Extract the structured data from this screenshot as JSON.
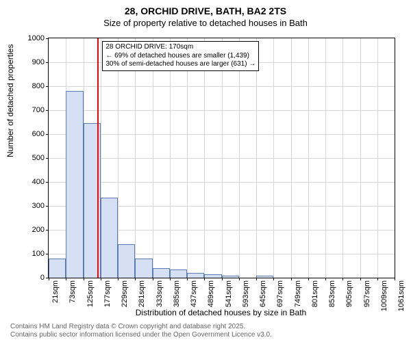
{
  "title": "28, ORCHID DRIVE, BATH, BA2 2TS",
  "subtitle": "Size of property relative to detached houses in Bath",
  "y_axis_label": "Number of detached properties",
  "x_axis_label": "Distribution of detached houses by size in Bath",
  "footer_line1": "Contains HM Land Registry data © Crown copyright and database right 2025.",
  "footer_line2": "Contains public sector information licensed under the Open Government Licence v3.0.",
  "chart": {
    "type": "histogram",
    "ylim": [
      0,
      1000
    ],
    "ytick_step": 100,
    "y_ticks": [
      0,
      100,
      200,
      300,
      400,
      500,
      600,
      700,
      800,
      900,
      1000
    ],
    "x_ticks": [
      "21sqm",
      "73sqm",
      "125sqm",
      "177sqm",
      "229sqm",
      "281sqm",
      "333sqm",
      "385sqm",
      "437sqm",
      "489sqm",
      "541sqm",
      "593sqm",
      "645sqm",
      "697sqm",
      "749sqm",
      "801sqm",
      "853sqm",
      "905sqm",
      "957sqm",
      "1009sqm",
      "1061sqm"
    ],
    "bar_fill": "#d6e0f5",
    "bar_stroke": "#5b7bb2",
    "background_color": "#ffffff",
    "grid_color": "#d6d6d6",
    "values": [
      80,
      780,
      645,
      335,
      140,
      80,
      40,
      35,
      20,
      15,
      8,
      0,
      10,
      0,
      0,
      0,
      0,
      0,
      0,
      0,
      0
    ],
    "marker_position_sqm": 170,
    "marker_color": "#ff0000",
    "annotation": {
      "line1": "28 ORCHID DRIVE: 170sqm",
      "line2": "← 69% of detached houses are smaller (1,439)",
      "line3": "30% of semi-detached houses are larger (631) →"
    },
    "title_fontsize": 14,
    "label_fontsize": 12,
    "tick_fontsize": 11,
    "annotation_fontsize": 10
  }
}
